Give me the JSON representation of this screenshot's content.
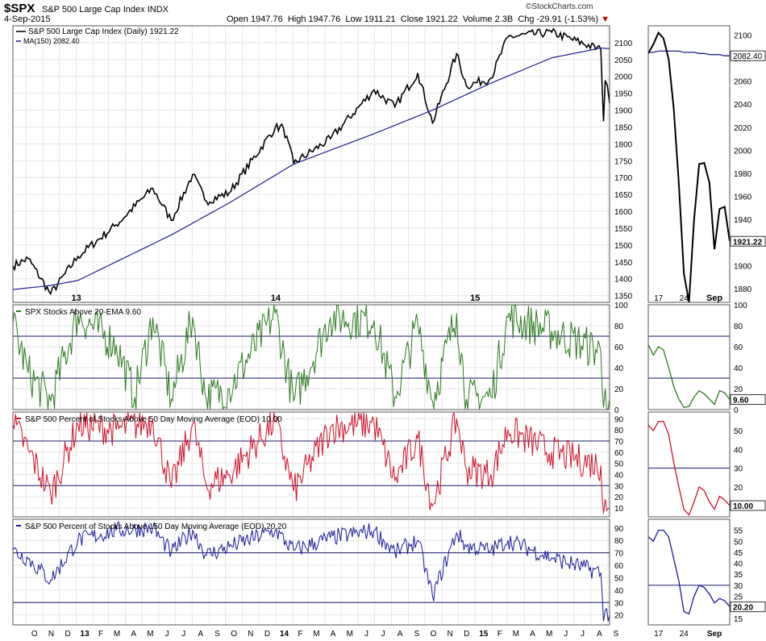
{
  "header": {
    "symbol": "$SPX",
    "name": "S&P 500 Large Cap Index",
    "exchange": "INDX",
    "date": "4-Sep-2015",
    "watermark": "©StockCharts.com",
    "open_label": "Open",
    "open": "1947.76",
    "high_label": "High",
    "high": "1947.76",
    "low_label": "Low",
    "low": "1911.21",
    "close_label": "Close",
    "close": "1921.22",
    "volume_label": "Volume",
    "volume": "2.3B",
    "chg_label": "Chg",
    "chg": "-29.91 (-1.53%)"
  },
  "colors": {
    "price": "#000000",
    "ma": "#1f1f8f",
    "ema": "#2d7a1f",
    "p50": "#d0102a",
    "p150": "#1a1a9a",
    "grid": "#bbbbbb",
    "border": "#555555"
  },
  "x_labels": [
    "O",
    "N",
    "D",
    "13",
    "F",
    "M",
    "A",
    "M",
    "J",
    "J",
    "A",
    "S",
    "O",
    "N",
    "D",
    "14",
    "F",
    "M",
    "A",
    "M",
    "J",
    "J",
    "A",
    "S",
    "O",
    "N",
    "D",
    "15",
    "F",
    "M",
    "A",
    "M",
    "J",
    "J",
    "A",
    "S"
  ],
  "zoom_x_labels": [
    "17",
    "24",
    "Sep"
  ],
  "chart_data": [
    {
      "type": "line",
      "legend_price": "S&P 500 Large Cap Index (Daily) 1921.22",
      "legend_ma": "MA(150) 2082.40",
      "yticks": [
        "1350",
        "1400",
        "1450",
        "1500",
        "1550",
        "1600",
        "1650",
        "1700",
        "1750",
        "1800",
        "1850",
        "1900",
        "1950",
        "2000",
        "2050",
        "2100"
      ],
      "ylim": [
        1330,
        2150
      ],
      "series": [
        {
          "name": "S&P 500 Large Cap Index (Daily)",
          "x": [
            "2012-09-07",
            "2012-10-05",
            "2012-11-15",
            "2013-01-04",
            "2013-03-15",
            "2013-05-21",
            "2013-06-24",
            "2013-08-02",
            "2013-08-27",
            "2013-10-08",
            "2013-12-31",
            "2014-01-15",
            "2014-02-03",
            "2014-04-11",
            "2014-06-30",
            "2014-08-07",
            "2014-09-18",
            "2014-10-15",
            "2014-11-28",
            "2014-12-16",
            "2015-01-30",
            "2015-03-02",
            "2015-05-21",
            "2015-08-19",
            "2015-08-24",
            "2015-08-27",
            "2015-08-31",
            "2015-09-04"
          ],
          "y": [
            1438,
            1460,
            1355,
            1466,
            1560,
            1668,
            1573,
            1709,
            1630,
            1655,
            1848,
            1848,
            1742,
            1815,
            1960,
            1910,
            2010,
            1862,
            2067,
            1972,
            1995,
            2117,
            2131,
            2079,
            1867,
            1988,
            1972,
            1921
          ]
        },
        {
          "name": "MA(150)",
          "x": [
            "2012-09-07",
            "2012-11-15",
            "2013-01-04",
            "2013-06-24",
            "2013-10-08",
            "2014-02-03",
            "2014-06-30",
            "2014-10-15",
            "2015-01-30",
            "2015-05-21",
            "2015-08-19",
            "2015-09-04"
          ],
          "y": [
            1368,
            1380,
            1395,
            1530,
            1625,
            1740,
            1830,
            1900,
            1980,
            2055,
            2084,
            2082
          ]
        }
      ]
    },
    {
      "type": "line",
      "legend": "SPX Stocks Above 20-EMA 9.60",
      "yticks": [
        "0",
        "20",
        "40",
        "60",
        "80",
        "100"
      ],
      "ylim": [
        0,
        100
      ],
      "hlines": [
        30,
        70
      ],
      "series": [
        {
          "name": "SPX Stocks Above 20-EMA",
          "x": [
            "2012-09-07",
            "2012-10-05",
            "2012-11-15",
            "2013-01-04",
            "2013-03-15",
            "2013-04-18",
            "2013-05-21",
            "2013-06-24",
            "2013-08-02",
            "2013-08-27",
            "2013-10-08",
            "2013-12-31",
            "2014-02-03",
            "2014-04-11",
            "2014-06-30",
            "2014-08-07",
            "2014-09-18",
            "2014-10-15",
            "2014-11-28",
            "2014-12-16",
            "2015-01-30",
            "2015-03-02",
            "2015-05-21",
            "2015-08-19",
            "2015-08-24",
            "2015-08-27",
            "2015-09-04"
          ],
          "y": [
            82,
            35,
            8,
            90,
            62,
            12,
            88,
            10,
            88,
            10,
            20,
            92,
            8,
            88,
            85,
            12,
            82,
            8,
            92,
            10,
            12,
            88,
            75,
            55,
            2,
            20,
            9.6
          ]
        }
      ]
    },
    {
      "type": "line",
      "legend": "S&P 500 Percent of Stocks Above 50 Day Moving Average (EOD) 10.00",
      "yticks": [
        "10",
        "20",
        "30",
        "40",
        "50",
        "60",
        "70",
        "80",
        "90"
      ],
      "ylim": [
        2,
        96
      ],
      "hlines": [
        30,
        70
      ],
      "series": [
        {
          "name": "S&P 500 Percent of Stocks Above 50 Day Moving Average (EOD)",
          "x": [
            "2012-09-07",
            "2012-10-05",
            "2012-11-15",
            "2013-01-04",
            "2013-03-15",
            "2013-05-21",
            "2013-06-24",
            "2013-08-02",
            "2013-08-27",
            "2013-10-08",
            "2013-12-31",
            "2014-02-03",
            "2014-04-11",
            "2014-06-30",
            "2014-08-07",
            "2014-09-18",
            "2014-10-15",
            "2014-11-28",
            "2014-12-16",
            "2015-01-30",
            "2015-03-02",
            "2015-05-21",
            "2015-08-19",
            "2015-08-24",
            "2015-08-27",
            "2015-09-04"
          ],
          "y": [
            85,
            62,
            22,
            85,
            80,
            88,
            28,
            85,
            30,
            40,
            88,
            25,
            82,
            86,
            35,
            72,
            12,
            90,
            45,
            40,
            80,
            60,
            48,
            5,
            18,
            10
          ]
        }
      ]
    },
    {
      "type": "line",
      "legend": "S&P 500 Percent of Stocks Above 150 Day Moving Average (EOD) 20.20",
      "yticks": [
        "20",
        "30",
        "40",
        "50",
        "60",
        "70",
        "80",
        "90"
      ],
      "ylim": [
        12,
        97
      ],
      "hlines": [
        30,
        70
      ],
      "series": [
        {
          "name": "S&P 500 Percent of Stocks Above 150 Day Moving Average (EOD)",
          "x": [
            "2012-09-07",
            "2012-10-05",
            "2012-11-15",
            "2013-01-04",
            "2013-03-15",
            "2013-05-21",
            "2013-06-24",
            "2013-08-02",
            "2013-08-27",
            "2013-10-08",
            "2013-12-31",
            "2014-02-03",
            "2014-04-11",
            "2014-06-30",
            "2014-08-07",
            "2014-09-18",
            "2014-10-15",
            "2014-11-28",
            "2014-12-16",
            "2015-01-30",
            "2015-03-02",
            "2015-05-21",
            "2015-08-19",
            "2015-08-24",
            "2015-08-27",
            "2015-09-04"
          ],
          "y": [
            72,
            65,
            48,
            80,
            88,
            90,
            70,
            88,
            68,
            75,
            88,
            72,
            82,
            88,
            70,
            80,
            35,
            86,
            75,
            72,
            80,
            66,
            54,
            15,
            24,
            20.2
          ]
        }
      ]
    }
  ],
  "zoom": {
    "price_yticks": [
      "1880",
      "1900",
      "1920",
      "1940",
      "1960",
      "1980",
      "2000",
      "2020",
      "2040",
      "2060",
      "2080",
      "2100"
    ],
    "price_ylim": [
      1868,
      2108
    ],
    "ema_yticks": [
      "0",
      "20",
      "40",
      "60",
      "80",
      "100"
    ],
    "p50_yticks": [
      "10",
      "20",
      "30",
      "40",
      "50"
    ],
    "p50_ylim": [
      4,
      60
    ],
    "p150_yticks": [
      "15",
      "20",
      "25",
      "30",
      "35",
      "40",
      "45",
      "50",
      "55"
    ],
    "p150_ylim": [
      12,
      60
    ],
    "price_last": "1921.22",
    "ma_last": "2082.40",
    "ema_last": "9.60",
    "p50_last": "10.00",
    "p150_last": "20.20",
    "x": [
      "2015-08-13",
      "2015-08-14",
      "2015-08-17",
      "2015-08-18",
      "2015-08-19",
      "2015-08-20",
      "2015-08-21",
      "2015-08-24",
      "2015-08-25",
      "2015-08-26",
      "2015-08-27",
      "2015-08-28",
      "2015-08-31",
      "2015-09-01",
      "2015-09-02",
      "2015-09-03",
      "2015-09-04"
    ],
    "price": [
      2084,
      2092,
      2102,
      2097,
      2079,
      2036,
      1971,
      1893,
      1868,
      1940,
      1988,
      1989,
      1972,
      1914,
      1949,
      1951,
      1921
    ],
    "ma": [
      2085,
      2085,
      2086,
      2086,
      2086,
      2086,
      2086,
      2085,
      2085,
      2085,
      2084,
      2084,
      2083,
      2083,
      2083,
      2082,
      2082
    ],
    "ema": [
      62,
      52,
      60,
      57,
      40,
      22,
      10,
      2,
      3,
      12,
      18,
      15,
      10,
      5,
      18,
      16,
      9.6
    ],
    "p50": [
      53,
      50,
      55,
      55,
      48,
      33,
      20,
      8,
      5,
      12,
      20,
      18,
      12,
      8,
      15,
      13,
      10
    ],
    "p150": [
      52,
      50,
      55,
      55,
      52,
      42,
      32,
      18,
      17,
      25,
      30,
      29,
      26,
      22,
      24,
      23,
      20.2
    ]
  }
}
